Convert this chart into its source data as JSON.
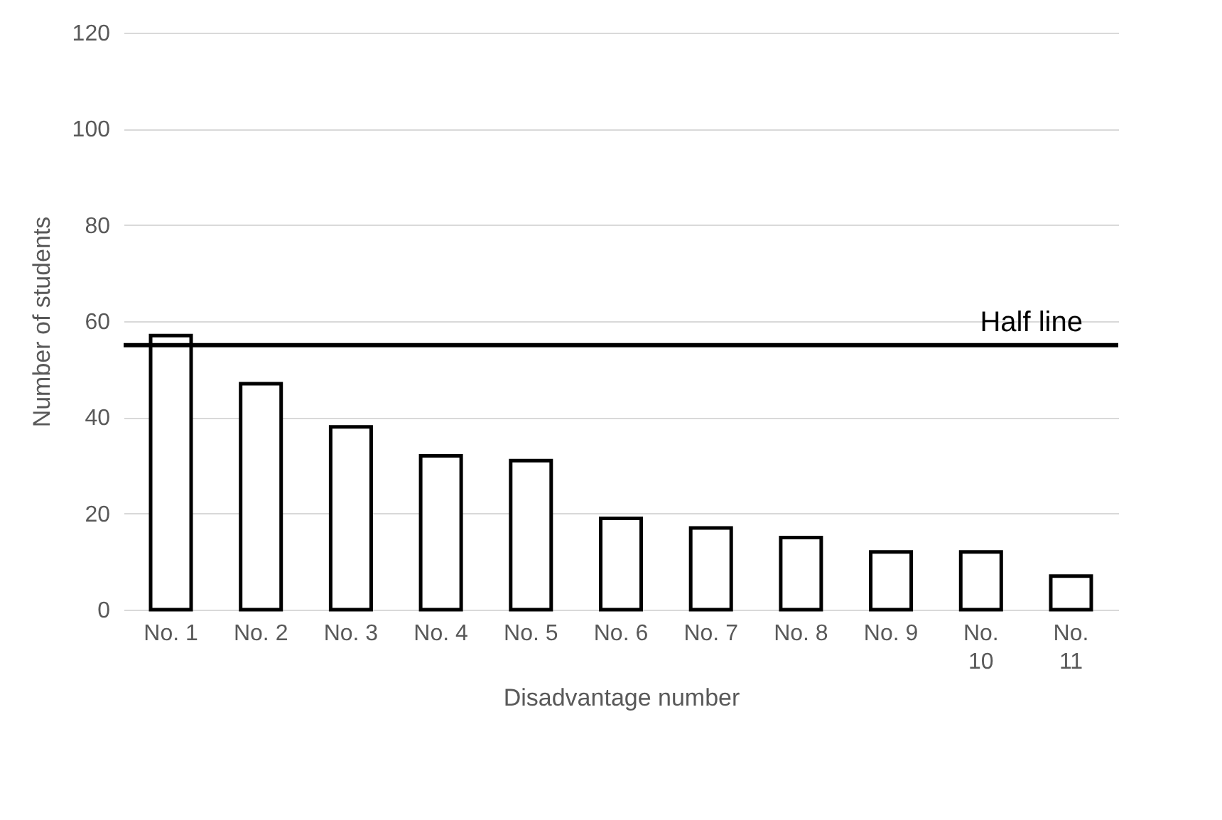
{
  "chart_data": {
    "type": "bar",
    "xlabel": "Disadvantage number",
    "ylabel": "Number  of students",
    "categories": [
      "No. 1",
      "No. 2",
      "No. 3",
      "No. 4",
      "No. 5",
      "No. 6",
      "No. 7",
      "No. 8",
      "No. 9",
      "No. 10",
      "No. 11"
    ],
    "values": [
      57,
      47,
      38,
      32,
      31,
      19,
      17,
      15,
      12,
      12,
      7
    ],
    "color": "#000000",
    "ylim": [
      0,
      120
    ],
    "yticks": [
      0,
      20,
      40,
      60,
      80,
      100,
      120
    ],
    "grid": "y",
    "ref_lines": [
      {
        "axis": "y",
        "value": 55,
        "label": "Half line",
        "color": "#000000"
      }
    ]
  }
}
